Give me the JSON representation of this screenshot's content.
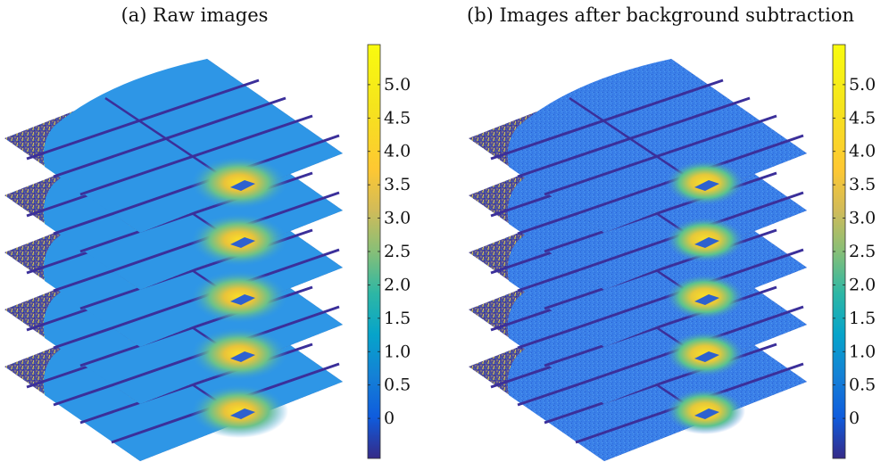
{
  "chart_data": [
    {
      "type": "heatmap",
      "title": "(a) Raw images",
      "stack_count": 5,
      "colorbar": {
        "ticks": [
          "0",
          "0.5",
          "1.0",
          "1.5",
          "2.0",
          "2.5",
          "3.0",
          "3.5",
          "4.0",
          "4.5",
          "5.0"
        ],
        "range": [
          -0.6,
          5.6
        ],
        "colormap": "parula"
      }
    },
    {
      "type": "heatmap",
      "title": "(b) Images after background subtraction",
      "stack_count": 5,
      "colorbar": {
        "ticks": [
          "0",
          "0.5",
          "1.0",
          "1.5",
          "2.0",
          "2.5",
          "3.0",
          "3.5",
          "4.0",
          "4.5",
          "5.0"
        ],
        "range": [
          -0.6,
          5.6
        ],
        "colormap": "parula"
      }
    }
  ],
  "colors": {
    "background_panel": "#2e96e6",
    "background_panel_subtracted": "#3a7fe8",
    "gap_lines": "#3b2f9a",
    "noise_corner": "#5d5aa0",
    "beam_center": "#f8d83a"
  }
}
